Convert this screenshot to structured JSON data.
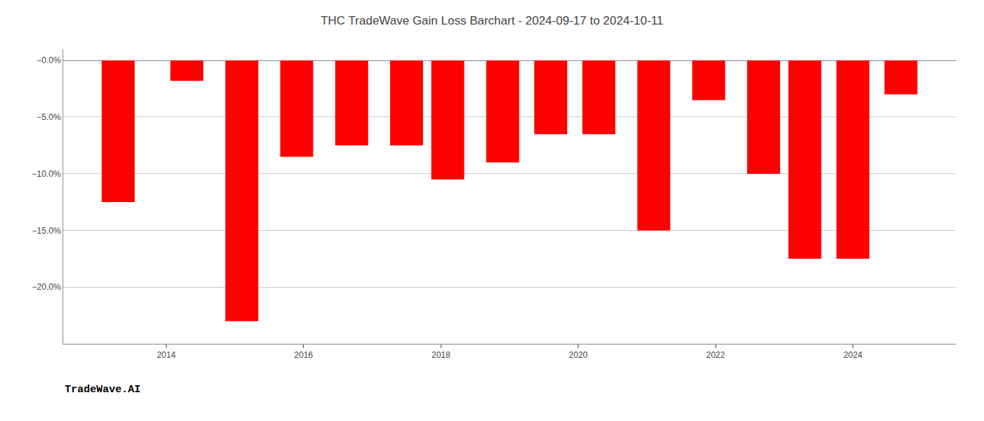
{
  "chart_data": {
    "type": "bar",
    "title": "THC TradeWave Gain Loss Barchart - 2024-09-17 to 2024-10-11",
    "annotations": [
      "TradeWave.AI"
    ],
    "x": [
      2013.3,
      2014.3,
      2015.1,
      2015.9,
      2016.7,
      2017.5,
      2018.1,
      2018.9,
      2019.6,
      2020.3,
      2021.1,
      2021.9,
      2022.7,
      2023.3,
      2024.0,
      2024.7
    ],
    "values": [
      -12.5,
      -1.8,
      -23.0,
      -8.5,
      -7.5,
      -7.5,
      -10.5,
      -9.0,
      -6.5,
      -6.5,
      -15.0,
      -3.5,
      -10.0,
      -17.5,
      -17.5,
      -3.0
    ],
    "color": "#ff0000",
    "xlim": [
      2012.5,
      2025.5
    ],
    "ylim": [
      -25,
      1.0
    ],
    "xticks": [
      2014,
      2016,
      2018,
      2020,
      2022,
      2024
    ],
    "yticks": [
      {
        "value": 0.0,
        "label": "−0.0%"
      },
      {
        "value": -5.0,
        "label": "−5.0%"
      },
      {
        "value": -10.0,
        "label": "−10.0%"
      },
      {
        "value": -15.0,
        "label": "−15.0%"
      },
      {
        "value": -20.0,
        "label": "−20.0%"
      }
    ],
    "grid": true
  }
}
